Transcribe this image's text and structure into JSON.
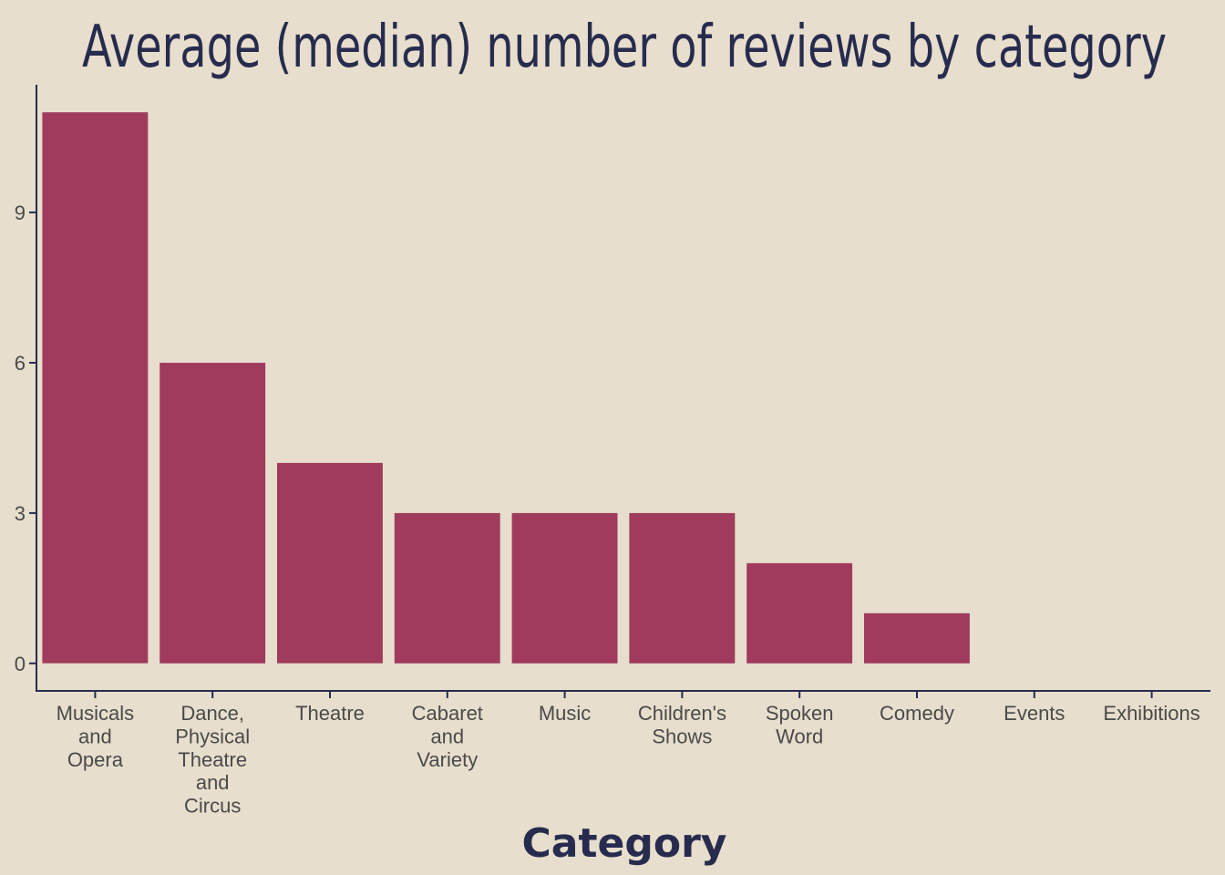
{
  "chart_data": {
    "type": "bar",
    "title": "Average (median) number of reviews by category",
    "xlabel": "Category",
    "ylabel": "",
    "categories": [
      "Musicals and Opera",
      "Dance, Physical Theatre and Circus",
      "Theatre",
      "Cabaret and Variety",
      "Music",
      "Children's Shows",
      "Spoken Word",
      "Comedy",
      "Events",
      "Exhibitions"
    ],
    "category_label_lines": [
      [
        "Musicals",
        "and",
        "Opera"
      ],
      [
        "Dance,",
        "Physical",
        "Theatre",
        "and",
        "Circus"
      ],
      [
        "Theatre"
      ],
      [
        "Cabaret",
        "and",
        "Variety"
      ],
      [
        "Music"
      ],
      [
        "Children's",
        "Shows"
      ],
      [
        "Spoken",
        "Word"
      ],
      [
        "Comedy"
      ],
      [
        "Events"
      ],
      [
        "Exhibitions"
      ]
    ],
    "values": [
      11,
      6,
      4,
      3,
      3,
      3,
      2,
      1,
      0,
      0
    ],
    "yticks": [
      0,
      3,
      6,
      9
    ],
    "ylim": [
      -0.55,
      11.55
    ],
    "grid": false,
    "legend": "none"
  },
  "colors": {
    "background": "#e7decd",
    "bar": "#a03b5e",
    "title": "#272c4e",
    "axis": "#272c4e",
    "tick_text": "#4a4a4a"
  }
}
